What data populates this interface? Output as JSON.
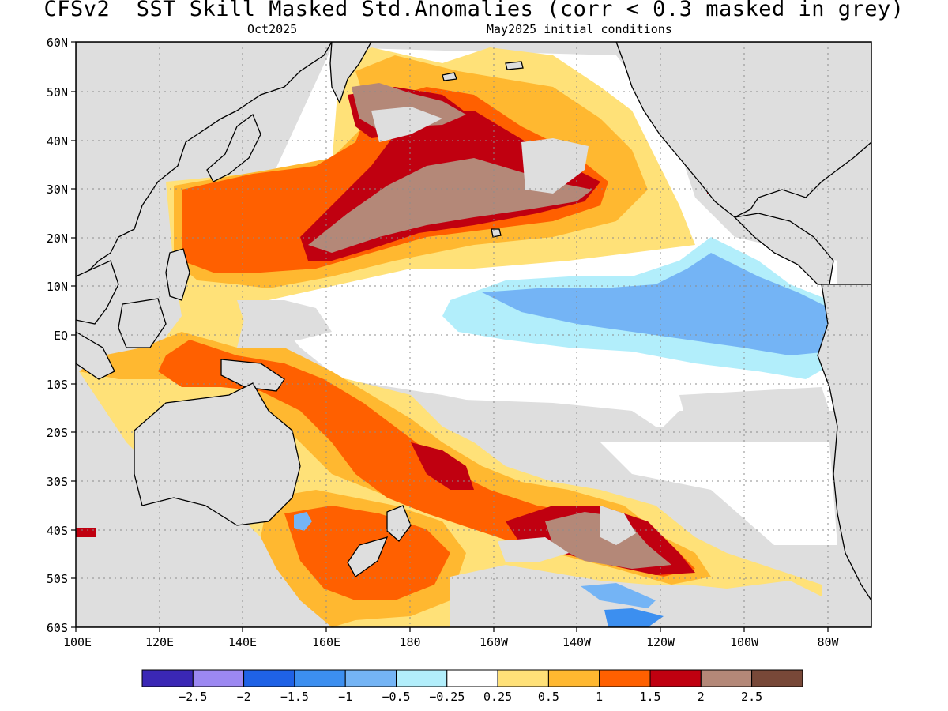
{
  "title": "CFSv2  SST Skill Masked Std.Anomalies (corr < 0.3 masked in grey)",
  "subtitle_left": "Oct2025",
  "subtitle_right": "May2025 initial conditions",
  "lat_labels": [
    "60N",
    "50N",
    "40N",
    "30N",
    "20N",
    "10N",
    "EQ",
    "10S",
    "20S",
    "30S",
    "40S",
    "50S",
    "60S"
  ],
  "lon_labels": [
    "100E",
    "120E",
    "140E",
    "160E",
    "180",
    "160W",
    "140W",
    "120W",
    "100W",
    "80W"
  ],
  "colorbar": {
    "colors": [
      "#3a27b5",
      "#9c88f2",
      "#1f62e6",
      "#3c8ff0",
      "#74b4f5",
      "#b2eefb",
      "#ffffff",
      "#ffe178",
      "#ffb830",
      "#ff6000",
      "#c00010",
      "#b48878",
      "#784838"
    ],
    "labels": [
      "−2.5",
      "−2",
      "−1.5",
      "−1",
      "−0.5",
      "−0.25",
      "0.25",
      "0.5",
      "1",
      "1.5",
      "2",
      "2.5"
    ]
  },
  "colors": {
    "mask_grey": "#dedede",
    "coast": "#000000",
    "grid": "#8c8c8c"
  }
}
